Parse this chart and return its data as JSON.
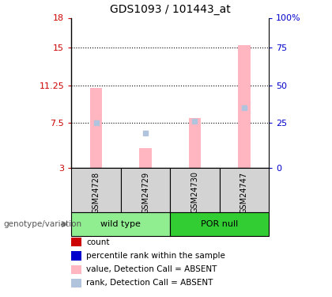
{
  "title": "GDS1093 / 101443_at",
  "samples": [
    "GSM24728",
    "GSM24729",
    "GSM24730",
    "GSM24747"
  ],
  "ylim": [
    3,
    18
  ],
  "yticks_left": [
    3,
    7.5,
    11.25,
    15,
    18
  ],
  "yticks_right_vals": [
    "0",
    "25",
    "50",
    "75",
    "100%"
  ],
  "yticks_right_pos": [
    3,
    7.5,
    11.25,
    15,
    18
  ],
  "dotted_lines": [
    7.5,
    11.25,
    15
  ],
  "bar_color_absent": "#ffb6c1",
  "bar_color_absent_rank": "#b0c4de",
  "left_axis_color": "#cc0000",
  "right_axis_color": "#0000cc",
  "sample_values": [
    11.0,
    5.0,
    8.0,
    15.3
  ],
  "sample_ranks": [
    7.5,
    6.5,
    7.7,
    9.0
  ],
  "bar_width": 0.25,
  "group_label": "genotype/variation",
  "legend_items": [
    {
      "color": "#cc0000",
      "label": "count"
    },
    {
      "color": "#0000cc",
      "label": "percentile rank within the sample"
    },
    {
      "color": "#ffb6c1",
      "label": "value, Detection Call = ABSENT"
    },
    {
      "color": "#b0c4de",
      "label": "rank, Detection Call = ABSENT"
    }
  ],
  "background_color": "#ffffff",
  "sample_bg_color": "#d3d3d3",
  "group_bg_light": "#90ee90",
  "group_bg_dark": "#32cd32",
  "group_defs": [
    {
      "start": 0,
      "end": 1,
      "label": "wild type",
      "color": "#90ee90"
    },
    {
      "start": 2,
      "end": 3,
      "label": "POR null",
      "color": "#32cd32"
    }
  ]
}
